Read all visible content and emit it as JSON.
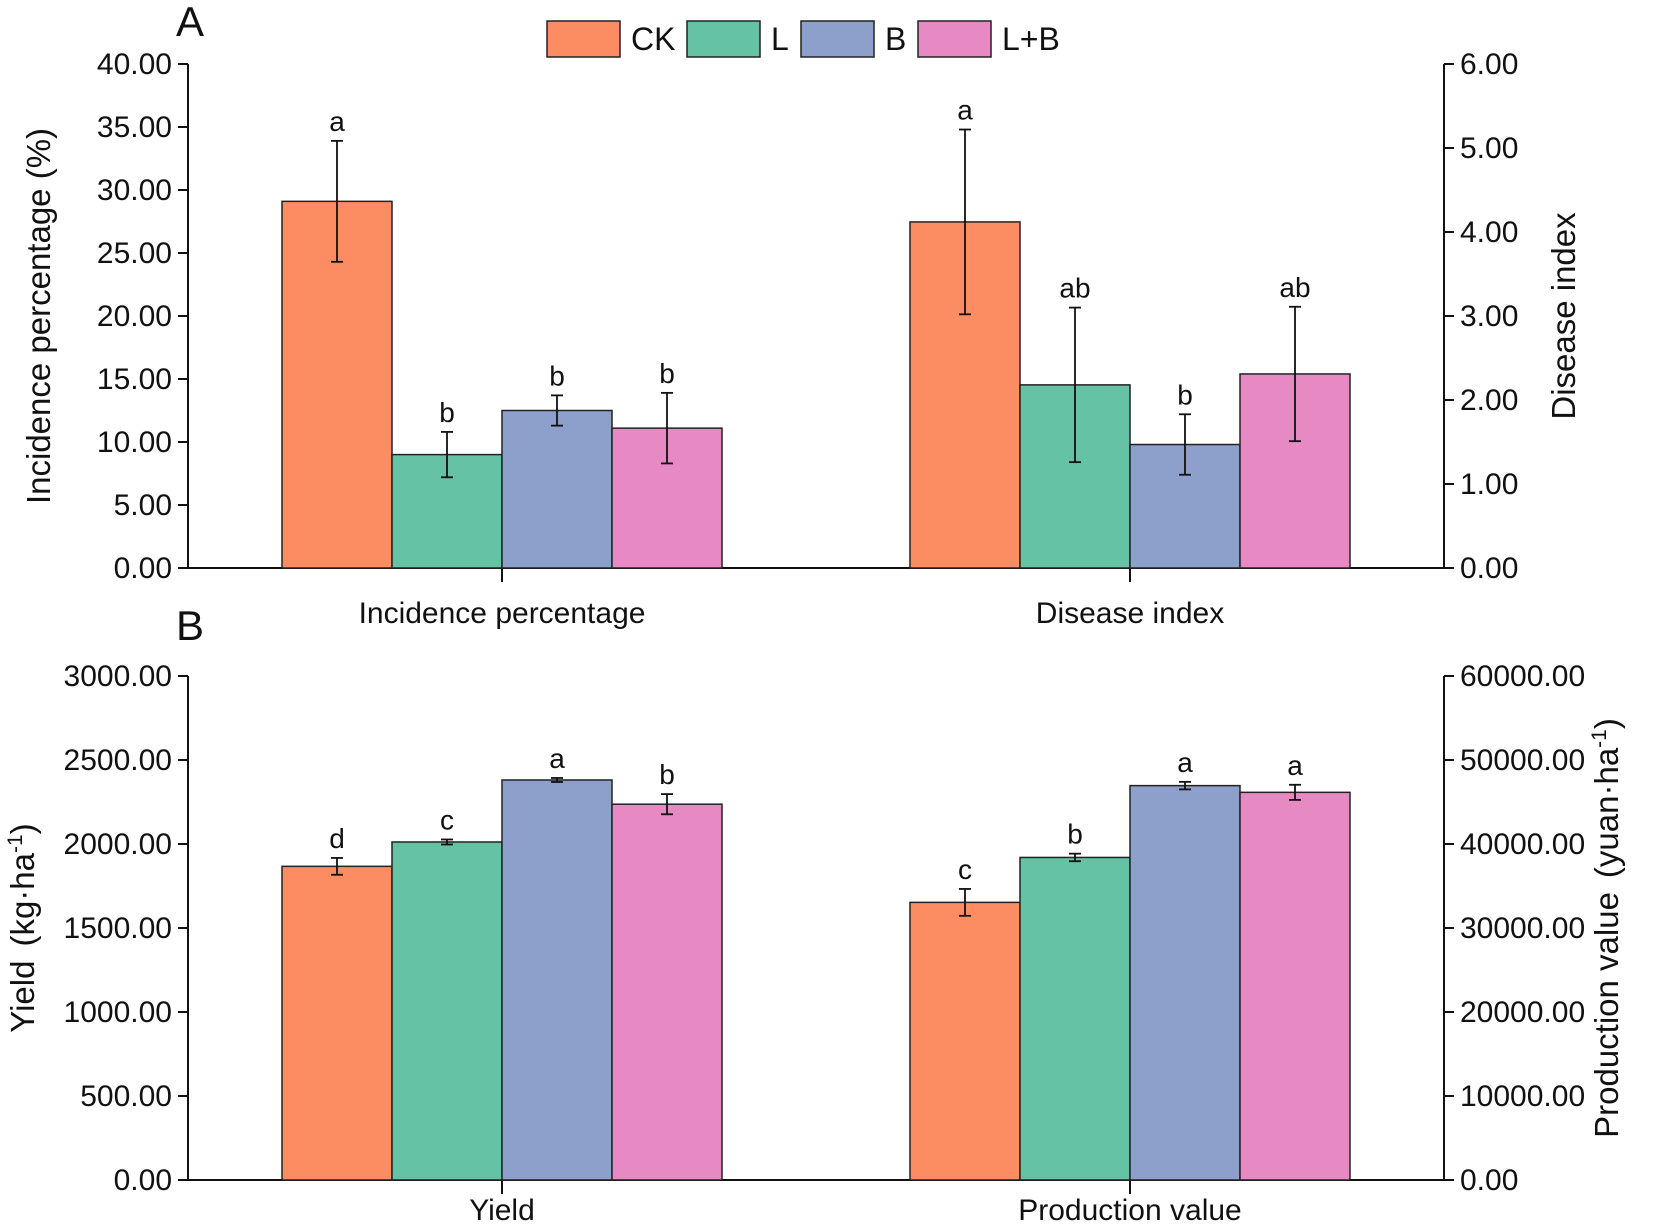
{
  "legend": [
    {
      "label": "CK",
      "color": "#FC8D62"
    },
    {
      "label": "L",
      "color": "#66C2A5"
    },
    {
      "label": "B",
      "color": "#8DA0CB"
    },
    {
      "label": "L+B",
      "color": "#E78AC3"
    }
  ],
  "chart_data": [
    {
      "type": "bar",
      "panel_label": "A",
      "title": "",
      "categories": [
        "Incidence percentage",
        "Disease index"
      ],
      "left_axis": {
        "label": "Incidence percentage (%)",
        "range": [
          0,
          40
        ],
        "ticks": [
          "0.00",
          "5.00",
          "10.00",
          "15.00",
          "20.00",
          "25.00",
          "30.00",
          "35.00",
          "40.00"
        ]
      },
      "right_axis": {
        "label": "Disease index",
        "range": [
          0,
          6
        ],
        "ticks": [
          "0.00",
          "1.00",
          "2.00",
          "3.00",
          "4.00",
          "5.00",
          "6.00"
        ]
      },
      "groups": [
        {
          "category": "Incidence percentage",
          "axis": "left",
          "series": [
            {
              "name": "CK",
              "value": 29.1,
              "error": 4.8,
              "sig": "a"
            },
            {
              "name": "L",
              "value": 9.0,
              "error": 1.8,
              "sig": "b"
            },
            {
              "name": "B",
              "value": 12.5,
              "error": 1.2,
              "sig": "b"
            },
            {
              "name": "L+B",
              "value": 11.1,
              "error": 2.8,
              "sig": "b"
            }
          ]
        },
        {
          "category": "Disease index",
          "axis": "right",
          "series": [
            {
              "name": "CK",
              "value": 4.12,
              "error": 1.1,
              "sig": "a"
            },
            {
              "name": "L",
              "value": 2.18,
              "error": 0.92,
              "sig": "ab"
            },
            {
              "name": "B",
              "value": 1.47,
              "error": 0.36,
              "sig": "b"
            },
            {
              "name": "L+B",
              "value": 2.31,
              "error": 0.8,
              "sig": "ab"
            }
          ]
        }
      ]
    },
    {
      "type": "bar",
      "panel_label": "B",
      "title": "",
      "categories": [
        "Yield",
        "Production value"
      ],
      "left_axis": {
        "label": "Yield",
        "unit": "(kg·ha",
        "sup": "-1",
        "close": ")",
        "range": [
          0,
          3000
        ],
        "ticks": [
          "0.00",
          "500.00",
          "1000.00",
          "1500.00",
          "2000.00",
          "2500.00",
          "3000.00"
        ]
      },
      "right_axis": {
        "label": "Production value",
        "unit": "(yuan·ha",
        "sup": "-1",
        "close": ")",
        "range": [
          0,
          60000
        ],
        "ticks": [
          "0.00",
          "10000.00",
          "20000.00",
          "30000.00",
          "40000.00",
          "50000.00",
          "60000.00"
        ]
      },
      "groups": [
        {
          "category": "Yield",
          "axis": "left",
          "series": [
            {
              "name": "CK",
              "value": 1867,
              "error": 50,
              "sig": "d"
            },
            {
              "name": "L",
              "value": 2012,
              "error": 15,
              "sig": "c"
            },
            {
              "name": "B",
              "value": 2381,
              "error": 12,
              "sig": "a"
            },
            {
              "name": "L+B",
              "value": 2237,
              "error": 60,
              "sig": "b"
            }
          ]
        },
        {
          "category": "Production value",
          "axis": "right",
          "series": [
            {
              "name": "CK",
              "value": 33050,
              "error": 1600,
              "sig": "c"
            },
            {
              "name": "L",
              "value": 38400,
              "error": 450,
              "sig": "b"
            },
            {
              "name": "B",
              "value": 46950,
              "error": 450,
              "sig": "a"
            },
            {
              "name": "L+B",
              "value": 46150,
              "error": 900,
              "sig": "a"
            }
          ]
        }
      ]
    }
  ]
}
